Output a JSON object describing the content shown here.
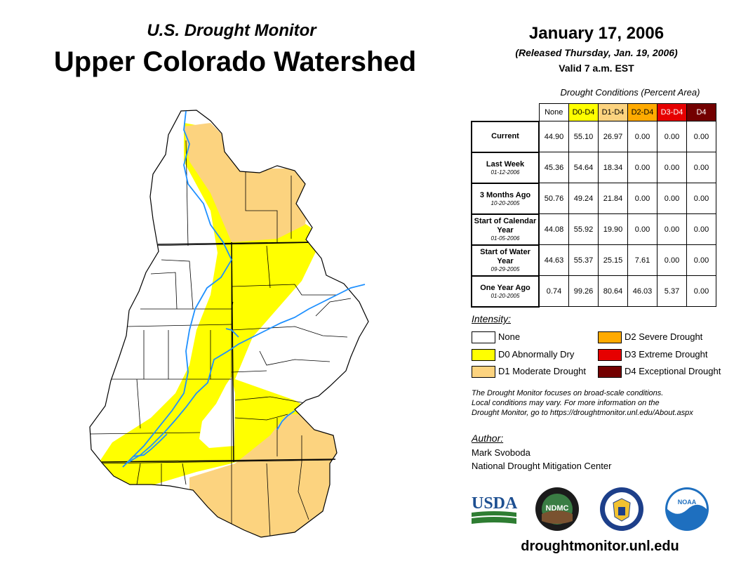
{
  "header": {
    "subtitle": "U.S. Drought Monitor",
    "title": "Upper Colorado Watershed",
    "date": "January 17, 2006",
    "released": "(Released Thursday, Jan. 19, 2006)",
    "valid": "Valid 7 a.m. EST"
  },
  "table": {
    "caption": "Drought Conditions (Percent Area)",
    "columns": [
      "None",
      "D0-D4",
      "D1-D4",
      "D2-D4",
      "D3-D4",
      "D4"
    ],
    "column_colors": [
      "#ffffff",
      "#ffff00",
      "#fcd37f",
      "#ffaa00",
      "#e60000",
      "#730000"
    ],
    "rows": [
      {
        "label": "Current",
        "date": "",
        "values": [
          "44.90",
          "55.10",
          "26.97",
          "0.00",
          "0.00",
          "0.00"
        ]
      },
      {
        "label": "Last Week",
        "date": "01-12-2006",
        "values": [
          "45.36",
          "54.64",
          "18.34",
          "0.00",
          "0.00",
          "0.00"
        ]
      },
      {
        "label": "3 Months Ago",
        "date": "10-20-2005",
        "values": [
          "50.76",
          "49.24",
          "21.84",
          "0.00",
          "0.00",
          "0.00"
        ]
      },
      {
        "label": "Start of Calendar Year",
        "date": "01-05-2006",
        "values": [
          "44.08",
          "55.92",
          "19.90",
          "0.00",
          "0.00",
          "0.00"
        ]
      },
      {
        "label": "Start of Water Year",
        "date": "09-29-2005",
        "values": [
          "44.63",
          "55.37",
          "25.15",
          "7.61",
          "0.00",
          "0.00"
        ]
      },
      {
        "label": "One Year Ago",
        "date": "01-20-2005",
        "values": [
          "0.74",
          "99.26",
          "80.64",
          "46.03",
          "5.37",
          "0.00"
        ]
      }
    ]
  },
  "legend": {
    "title": "Intensity:",
    "items": [
      {
        "label": "None",
        "color": "#ffffff"
      },
      {
        "label": "D0 Abnormally Dry",
        "color": "#ffff00"
      },
      {
        "label": "D1 Moderate Drought",
        "color": "#fcd37f"
      },
      {
        "label": "D2 Severe Drought",
        "color": "#ffaa00"
      },
      {
        "label": "D3 Extreme Drought",
        "color": "#e60000"
      },
      {
        "label": "D4 Exceptional Drought",
        "color": "#730000"
      }
    ]
  },
  "note": {
    "line1": "The Drought Monitor focuses on broad-scale conditions.",
    "line2": "Local conditions may vary. For more information on the",
    "line3": "Drought Monitor, go to https://droughtmonitor.unl.edu/About.aspx"
  },
  "author": {
    "label": "Author:",
    "name": "Mark Svoboda",
    "org": "National Drought Mitigation Center"
  },
  "logos": {
    "usda": "USDA",
    "ndmc": "NDMC",
    "noaa": "NOAA"
  },
  "website": "droughtmonitor.unl.edu",
  "colors": {
    "none": "#ffffff",
    "d0": "#ffff00",
    "d1": "#fcd37f",
    "river": "#1e90ff"
  }
}
